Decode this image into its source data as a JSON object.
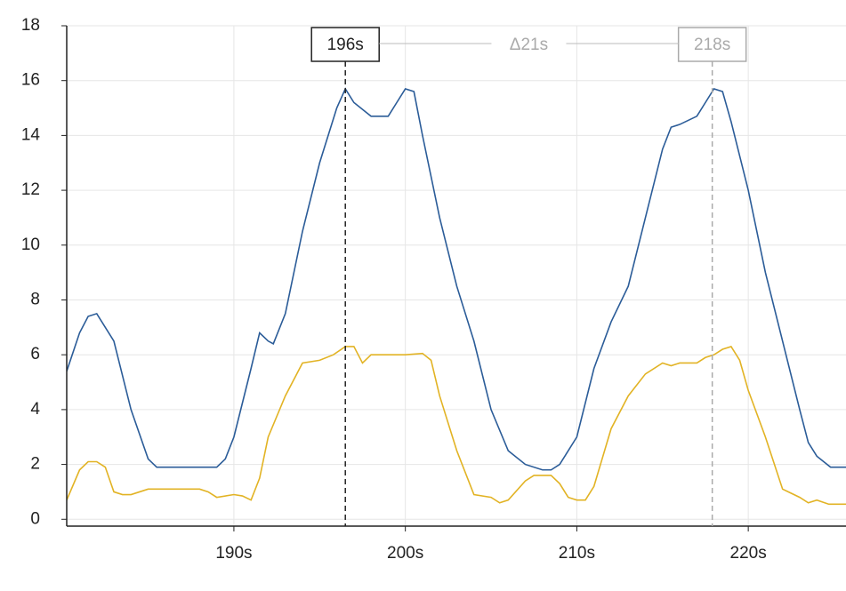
{
  "chart_data": {
    "type": "line",
    "xlim": [
      180.25,
      225.7
    ],
    "ylim": [
      -0.25,
      18
    ],
    "xticks": [
      {
        "value": 190,
        "label": "190s"
      },
      {
        "value": 200,
        "label": "200s"
      },
      {
        "value": 210,
        "label": "210s"
      },
      {
        "value": 220,
        "label": "220s"
      }
    ],
    "yticks": [
      0,
      2,
      4,
      6,
      8,
      10,
      12,
      14,
      16,
      18
    ],
    "grid": true,
    "markers": [
      {
        "x": 196.5,
        "label": "196s",
        "color": "#222222"
      },
      {
        "x": 217.9,
        "label": "218s",
        "color": "#aaaaaa"
      }
    ],
    "delta_label": "Δ21s",
    "series": [
      {
        "color": "#2b5c98",
        "x": [
          180.25,
          181,
          181.5,
          182,
          183,
          184,
          185,
          185.5,
          186,
          189,
          189.5,
          190,
          191,
          191.5,
          192,
          192.3,
          193,
          194,
          195,
          196,
          196.5,
          197,
          198,
          199,
          199.5,
          200,
          200.5,
          201,
          202,
          203,
          204,
          205,
          206,
          207,
          208,
          208.5,
          209,
          210,
          211,
          212,
          213,
          214,
          215,
          215.5,
          216,
          217,
          217.5,
          218,
          218.5,
          219,
          220,
          221,
          222,
          223,
          223.5,
          224,
          224.8,
          225.7
        ],
        "values": [
          5.4,
          6.8,
          7.4,
          7.5,
          6.5,
          4,
          2.2,
          1.9,
          1.9,
          1.9,
          2.2,
          3,
          5.5,
          6.8,
          6.5,
          6.4,
          7.5,
          10.5,
          13,
          15,
          15.7,
          15.2,
          14.7,
          14.7,
          15.2,
          15.7,
          15.6,
          14,
          11,
          8.5,
          6.5,
          4,
          2.5,
          2,
          1.8,
          1.8,
          2,
          3,
          5.5,
          7.2,
          8.5,
          11,
          13.5,
          14.3,
          14.4,
          14.7,
          15.2,
          15.7,
          15.6,
          14.5,
          12,
          9,
          6.5,
          4,
          2.8,
          2.3,
          1.9,
          1.9
        ]
      },
      {
        "color": "#e2b324",
        "x": [
          180.25,
          181,
          181.5,
          182,
          182.5,
          183,
          183.5,
          184,
          184.5,
          185,
          188,
          188.5,
          189,
          190,
          190.5,
          191,
          191.5,
          192,
          193,
          194,
          195,
          195.8,
          196.5,
          197,
          197.5,
          198,
          200,
          201,
          201.5,
          202,
          203,
          204,
          205,
          205.5,
          206,
          207,
          207.5,
          208.5,
          209,
          209.5,
          210,
          210.5,
          211,
          212,
          213,
          214,
          215,
          215.5,
          216,
          217,
          217.5,
          218,
          218.5,
          219,
          219.5,
          220,
          221,
          222,
          223,
          223.5,
          224,
          224.7,
          225.7
        ],
        "values": [
          0.7,
          1.8,
          2.1,
          2.1,
          1.9,
          1,
          0.9,
          0.9,
          1,
          1.1,
          1.1,
          1,
          0.8,
          0.9,
          0.85,
          0.7,
          1.5,
          3,
          4.5,
          5.7,
          5.8,
          6,
          6.3,
          6.3,
          5.7,
          6,
          6,
          6.05,
          5.8,
          4.5,
          2.5,
          0.9,
          0.8,
          0.6,
          0.7,
          1.4,
          1.6,
          1.6,
          1.3,
          0.8,
          0.7,
          0.7,
          1.2,
          3.3,
          4.5,
          5.3,
          5.7,
          5.6,
          5.7,
          5.7,
          5.9,
          6,
          6.2,
          6.3,
          5.8,
          4.7,
          3,
          1.1,
          0.8,
          0.6,
          0.7,
          0.55,
          0.55
        ]
      }
    ]
  }
}
